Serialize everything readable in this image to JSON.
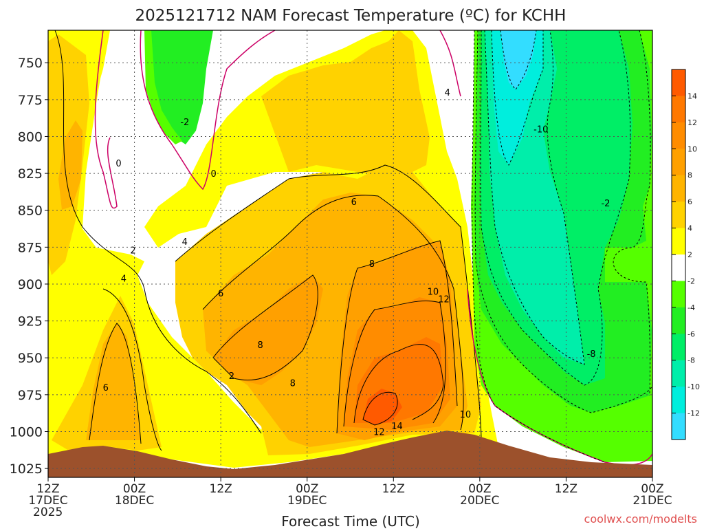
{
  "chart_data": {
    "type": "heatmap",
    "title": "2025121712 NAM Forecast Temperature (ºC) for KCHH",
    "xlabel": "Forecast Time (UTC)",
    "ylabel": "",
    "watermark": "coolwx.com/modelts",
    "x_ticks": [
      {
        "hours": 0,
        "line1": "12Z",
        "line2": "17DEC",
        "line3": "2025"
      },
      {
        "hours": 12,
        "line1": "00Z",
        "line2": "18DEC",
        "line3": ""
      },
      {
        "hours": 24,
        "line1": "12Z",
        "line2": "",
        "line3": ""
      },
      {
        "hours": 36,
        "line1": "00Z",
        "line2": "19DEC",
        "line3": ""
      },
      {
        "hours": 48,
        "line1": "12Z",
        "line2": "",
        "line3": ""
      },
      {
        "hours": 60,
        "line1": "00Z",
        "line2": "20DEC",
        "line3": ""
      },
      {
        "hours": 72,
        "line1": "12Z",
        "line2": "",
        "line3": ""
      },
      {
        "hours": 84,
        "line1": "00Z",
        "line2": "21DEC",
        "line3": ""
      }
    ],
    "xlim": [
      0,
      84
    ],
    "y_ticks": [
      750,
      775,
      800,
      825,
      850,
      875,
      900,
      925,
      950,
      975,
      1000,
      1025
    ],
    "ylim": [
      728,
      1031
    ],
    "grid": true,
    "colorbar": {
      "labels": [
        14,
        12,
        10,
        8,
        6,
        4,
        2,
        -2,
        -4,
        -6,
        -8,
        -10,
        -12
      ],
      "bands": [
        {
          "min": 14,
          "max": 16,
          "color": "#ff5a00"
        },
        {
          "min": 12,
          "max": 14,
          "color": "#ff7800"
        },
        {
          "min": 10,
          "max": 12,
          "color": "#ff8c00"
        },
        {
          "min": 8,
          "max": 10,
          "color": "#ffa000"
        },
        {
          "min": 6,
          "max": 8,
          "color": "#ffb400"
        },
        {
          "min": 4,
          "max": 6,
          "color": "#ffd200"
        },
        {
          "min": 2,
          "max": 4,
          "color": "#ffff00"
        },
        {
          "min": -2,
          "max": 2,
          "color": "#ffffff"
        },
        {
          "min": -4,
          "max": -2,
          "color": "#55ff00"
        },
        {
          "min": -6,
          "max": -4,
          "color": "#22ee22"
        },
        {
          "min": -8,
          "max": -6,
          "color": "#00ee66"
        },
        {
          "min": -10,
          "max": -8,
          "color": "#00eeaa"
        },
        {
          "min": -12,
          "max": -10,
          "color": "#00eedd"
        },
        {
          "min": -14,
          "max": -12,
          "color": "#33ddff"
        }
      ]
    },
    "contour_labels": [
      {
        "hours": 10.5,
        "p": 896,
        "text": "4"
      },
      {
        "hours": 11.8,
        "p": 877,
        "text": "2"
      },
      {
        "hours": 9.8,
        "p": 818,
        "text": "0"
      },
      {
        "hours": 8.0,
        "p": 970,
        "text": "6"
      },
      {
        "hours": 19.0,
        "p": 790,
        "text": "-2"
      },
      {
        "hours": 23.0,
        "p": 825,
        "text": "0"
      },
      {
        "hours": 19.0,
        "p": 871,
        "text": "4"
      },
      {
        "hours": 24.0,
        "p": 906,
        "text": "6"
      },
      {
        "hours": 29.5,
        "p": 941,
        "text": "8"
      },
      {
        "hours": 25.5,
        "p": 962,
        "text": "2"
      },
      {
        "hours": 34.0,
        "p": 967,
        "text": "8"
      },
      {
        "hours": 45.0,
        "p": 886,
        "text": "8"
      },
      {
        "hours": 42.5,
        "p": 844,
        "text": "6"
      },
      {
        "hours": 53.5,
        "p": 905,
        "text": "10"
      },
      {
        "hours": 55.0,
        "p": 910,
        "text": "12"
      },
      {
        "hours": 55.5,
        "p": 770,
        "text": "4"
      },
      {
        "hours": 58.0,
        "p": 988,
        "text": "10"
      },
      {
        "hours": 46.0,
        "p": 1000,
        "text": "12"
      },
      {
        "hours": 48.5,
        "p": 996,
        "text": "14"
      },
      {
        "hours": 68.5,
        "p": 795,
        "text": "-10"
      },
      {
        "hours": 77.5,
        "p": 845,
        "text": "-2"
      },
      {
        "hours": 75.5,
        "p": 947,
        "text": "-8"
      }
    ]
  }
}
